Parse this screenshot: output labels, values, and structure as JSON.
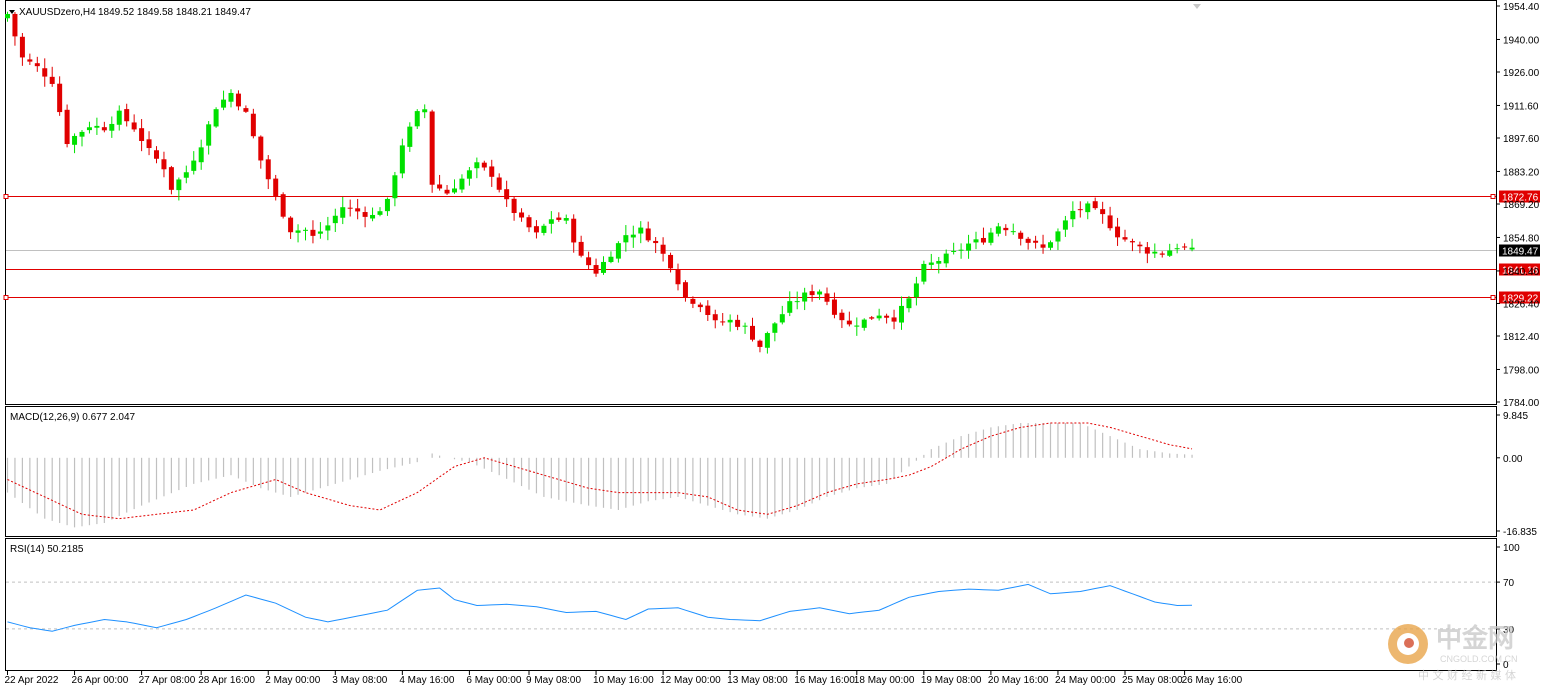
{
  "header": {
    "symbol": "XAUUSDzero,H4",
    "ohlc": "1849.52 1849.58 1848.21 1849.47"
  },
  "macd_panel": {
    "label": "MACD(12,26,9) 0.677 2.047"
  },
  "rsi_panel": {
    "label": "RSI(14) 50.2185"
  },
  "watermark": {
    "main": "中金网",
    "sub": "CNGOLD.COM.CN",
    "tagline": "中 文 财 经 新 媒 体"
  },
  "colors": {
    "bull": "#00e000",
    "bear": "#e00000",
    "level": "#e00000",
    "current": "#000000",
    "macd_hist": "#c0c0c0",
    "macd_signal": "#e00000",
    "rsi": "#1e90ff"
  },
  "chart_data": {
    "type": "candlestick",
    "timeframe": "H4",
    "price_axis": {
      "ticks": [
        1954.4,
        1940.0,
        1926.0,
        1911.6,
        1897.6,
        1883.2,
        1869.2,
        1854.8,
        1840.4,
        1826.4,
        1812.4,
        1798.0,
        1784.0
      ],
      "range": [
        1784.0,
        1954.4
      ]
    },
    "levels": [
      {
        "name": "resistance",
        "value": 1872.76,
        "label": "1872.76"
      },
      {
        "name": "current",
        "value": 1849.47,
        "label": "1849.47"
      },
      {
        "name": "support-1",
        "value": 1841.18,
        "label": "1841.18"
      },
      {
        "name": "support-2",
        "value": 1829.22,
        "label": "1829.22"
      }
    ],
    "time_labels": [
      "22 Apr 2022",
      "26 Apr 00:00",
      "27 Apr 08:00",
      "28 Apr 16:00",
      "2 May 00:00",
      "3 May 08:00",
      "4 May 16:00",
      "6 May 00:00",
      "9 May 08:00",
      "10 May 16:00",
      "12 May 00:00",
      "13 May 08:00",
      "16 May 16:00",
      "18 May 00:00",
      "19 May 08:00",
      "20 May 16:00",
      "24 May 00:00",
      "25 May 08:00",
      "26 May 16:00"
    ],
    "close_path": [
      [
        0,
        1951
      ],
      [
        2,
        1932
      ],
      [
        4,
        1928
      ],
      [
        6,
        1922
      ],
      [
        8,
        1896
      ],
      [
        11,
        1903
      ],
      [
        13,
        1902
      ],
      [
        15,
        1908
      ],
      [
        17,
        1902
      ],
      [
        19,
        1892
      ],
      [
        21,
        1885
      ],
      [
        22,
        1876
      ],
      [
        24,
        1883
      ],
      [
        26,
        1895
      ],
      [
        28,
        1911
      ],
      [
        30,
        1917
      ],
      [
        32,
        1908
      ],
      [
        34,
        1888
      ],
      [
        36,
        1872
      ],
      [
        38,
        1858
      ],
      [
        40,
        1858
      ],
      [
        41,
        1855
      ],
      [
        43,
        1860
      ],
      [
        45,
        1868
      ],
      [
        47,
        1866
      ],
      [
        49,
        1864
      ],
      [
        51,
        1870
      ],
      [
        53,
        1895
      ],
      [
        55,
        1908
      ],
      [
        56,
        1910
      ],
      [
        57,
        1878
      ],
      [
        59,
        1874
      ],
      [
        61,
        1880
      ],
      [
        63,
        1886
      ],
      [
        65,
        1882
      ],
      [
        67,
        1870
      ],
      [
        69,
        1862
      ],
      [
        71,
        1856
      ],
      [
        73,
        1863
      ],
      [
        75,
        1862
      ],
      [
        77,
        1846
      ],
      [
        79,
        1840
      ],
      [
        81,
        1848
      ],
      [
        83,
        1856
      ],
      [
        85,
        1858
      ],
      [
        87,
        1852
      ],
      [
        89,
        1843
      ],
      [
        91,
        1829
      ],
      [
        93,
        1826
      ],
      [
        95,
        1818
      ],
      [
        97,
        1819
      ],
      [
        99,
        1816
      ],
      [
        101,
        1808
      ],
      [
        103,
        1818
      ],
      [
        105,
        1826
      ],
      [
        107,
        1830
      ],
      [
        109,
        1832
      ],
      [
        111,
        1823
      ],
      [
        113,
        1817
      ],
      [
        115,
        1819
      ],
      [
        117,
        1822
      ],
      [
        119,
        1820
      ],
      [
        121,
        1828
      ],
      [
        123,
        1842
      ],
      [
        125,
        1845
      ],
      [
        127,
        1848
      ],
      [
        129,
        1852
      ],
      [
        131,
        1854
      ],
      [
        133,
        1860
      ],
      [
        135,
        1858
      ],
      [
        137,
        1853
      ],
      [
        139,
        1850
      ],
      [
        141,
        1857
      ],
      [
        143,
        1866
      ],
      [
        145,
        1868
      ],
      [
        147,
        1864
      ],
      [
        149,
        1856
      ],
      [
        151,
        1852
      ],
      [
        153,
        1849
      ],
      [
        155,
        1848
      ],
      [
        157,
        1851
      ],
      [
        159,
        1849
      ]
    ],
    "candle_count": 160,
    "macd": {
      "label": "MACD(12,26,9)",
      "main": 0.677,
      "signal": 2.047,
      "ticks": [
        9.845,
        0.0,
        -16.835
      ],
      "range": [
        -16.835,
        9.845
      ],
      "hist_path": [
        [
          0,
          -8
        ],
        [
          5,
          -14
        ],
        [
          9,
          -16
        ],
        [
          13,
          -15
        ],
        [
          18,
          -11
        ],
        [
          25,
          -6
        ],
        [
          30,
          -4
        ],
        [
          34,
          -7
        ],
        [
          38,
          -9
        ],
        [
          44,
          -6
        ],
        [
          50,
          -3
        ],
        [
          55,
          -1
        ],
        [
          57,
          1
        ],
        [
          59,
          0
        ],
        [
          62,
          -1
        ],
        [
          66,
          -4
        ],
        [
          72,
          -9
        ],
        [
          78,
          -11
        ],
        [
          82,
          -12
        ],
        [
          86,
          -10
        ],
        [
          90,
          -9
        ],
        [
          94,
          -11
        ],
        [
          98,
          -13
        ],
        [
          102,
          -14
        ],
        [
          106,
          -12
        ],
        [
          110,
          -9
        ],
        [
          114,
          -7
        ],
        [
          118,
          -6
        ],
        [
          121,
          -2
        ],
        [
          124,
          2
        ],
        [
          128,
          5
        ],
        [
          132,
          7
        ],
        [
          136,
          8
        ],
        [
          140,
          8
        ],
        [
          144,
          8
        ],
        [
          148,
          5
        ],
        [
          152,
          2
        ],
        [
          156,
          1
        ],
        [
          159,
          0.7
        ]
      ],
      "signal_path": [
        [
          0,
          -5
        ],
        [
          5,
          -9
        ],
        [
          10,
          -13
        ],
        [
          15,
          -14
        ],
        [
          20,
          -13
        ],
        [
          25,
          -12
        ],
        [
          30,
          -8
        ],
        [
          36,
          -5
        ],
        [
          40,
          -8
        ],
        [
          46,
          -11
        ],
        [
          50,
          -12
        ],
        [
          55,
          -8
        ],
        [
          60,
          -2
        ],
        [
          64,
          0
        ],
        [
          68,
          -2
        ],
        [
          72,
          -4
        ],
        [
          78,
          -7
        ],
        [
          82,
          -8
        ],
        [
          86,
          -8
        ],
        [
          90,
          -8
        ],
        [
          94,
          -9
        ],
        [
          98,
          -12
        ],
        [
          102,
          -13
        ],
        [
          106,
          -11
        ],
        [
          110,
          -8
        ],
        [
          114,
          -6
        ],
        [
          118,
          -5
        ],
        [
          121,
          -4
        ],
        [
          124,
          -2
        ],
        [
          128,
          2
        ],
        [
          132,
          5
        ],
        [
          136,
          7
        ],
        [
          140,
          8
        ],
        [
          145,
          8
        ],
        [
          148,
          7
        ],
        [
          152,
          5
        ],
        [
          156,
          3
        ],
        [
          159,
          2.05
        ]
      ]
    },
    "rsi": {
      "label": "RSI(14)",
      "value": 50.2185,
      "ticks": [
        100,
        70,
        30,
        0
      ],
      "range": [
        0,
        100
      ],
      "levels": [
        70,
        30
      ],
      "path": [
        [
          0,
          36
        ],
        [
          3,
          31
        ],
        [
          6,
          28
        ],
        [
          9,
          33
        ],
        [
          13,
          38
        ],
        [
          16,
          36
        ],
        [
          20,
          31
        ],
        [
          24,
          38
        ],
        [
          28,
          48
        ],
        [
          32,
          59
        ],
        [
          36,
          52
        ],
        [
          40,
          40
        ],
        [
          43,
          36
        ],
        [
          47,
          41
        ],
        [
          51,
          46
        ],
        [
          55,
          63
        ],
        [
          58,
          65
        ],
        [
          60,
          55
        ],
        [
          63,
          50
        ],
        [
          67,
          51
        ],
        [
          71,
          49
        ],
        [
          75,
          44
        ],
        [
          79,
          45
        ],
        [
          83,
          38
        ],
        [
          86,
          47
        ],
        [
          90,
          48
        ],
        [
          94,
          40
        ],
        [
          97,
          38
        ],
        [
          101,
          37
        ],
        [
          105,
          45
        ],
        [
          109,
          48
        ],
        [
          113,
          43
        ],
        [
          117,
          46
        ],
        [
          121,
          57
        ],
        [
          125,
          62
        ],
        [
          129,
          64
        ],
        [
          133,
          63
        ],
        [
          137,
          68
        ],
        [
          140,
          60
        ],
        [
          144,
          62
        ],
        [
          148,
          67
        ],
        [
          151,
          60
        ],
        [
          154,
          53
        ],
        [
          157,
          50
        ],
        [
          159,
          50.2
        ]
      ]
    }
  }
}
